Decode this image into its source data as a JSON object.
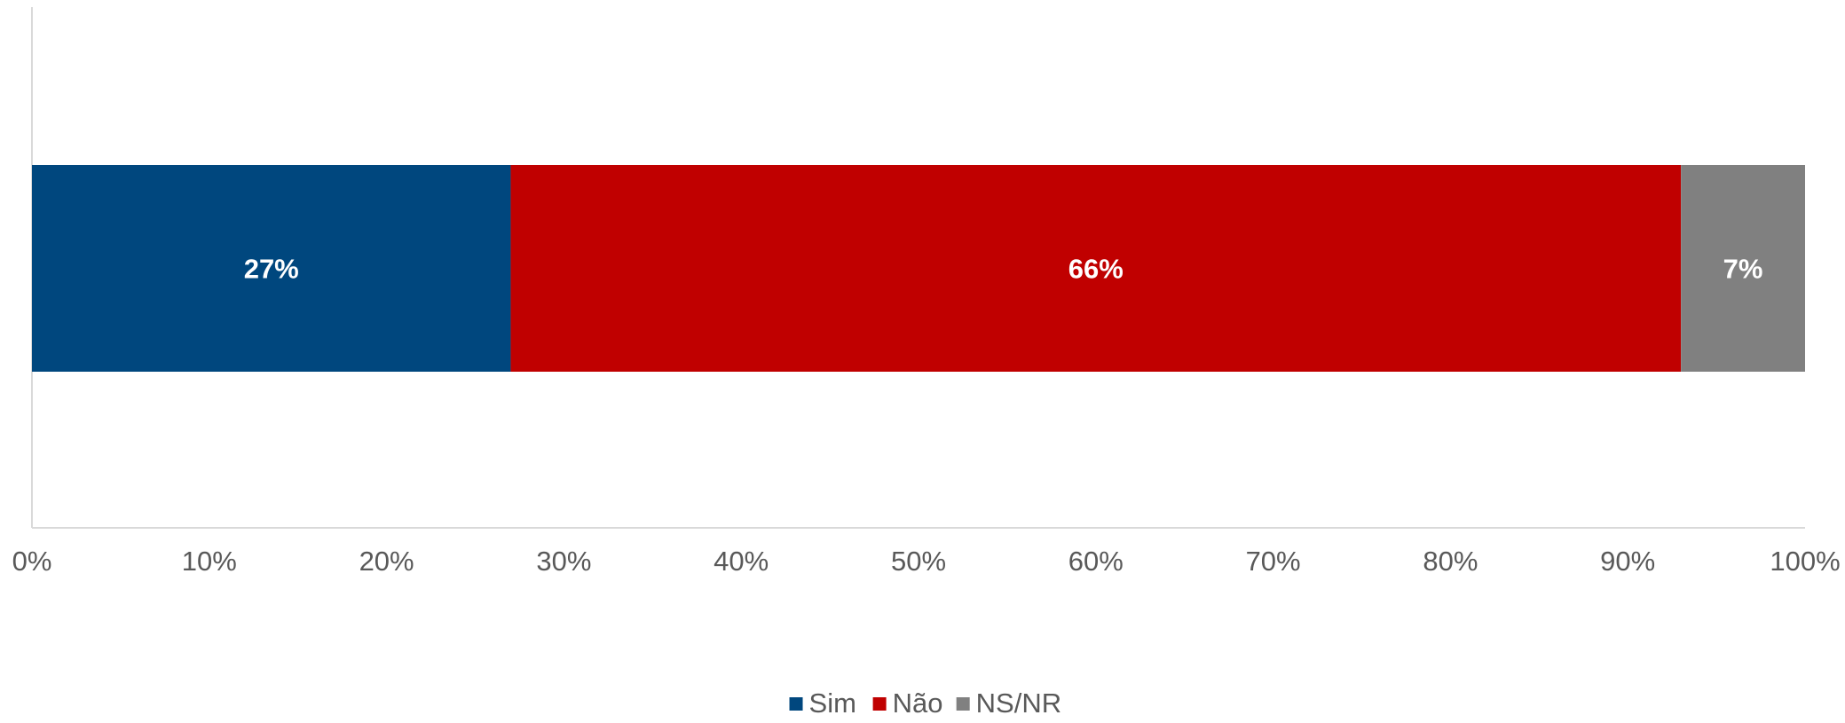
{
  "chart_data": {
    "type": "bar",
    "orientation": "horizontal",
    "stacked": "percent",
    "categories": [
      ""
    ],
    "series": [
      {
        "name": "Sim",
        "values": [
          27
        ],
        "label": "27%",
        "color": "#00477e"
      },
      {
        "name": "Não",
        "values": [
          66
        ],
        "label": "66%",
        "color": "#c00000"
      },
      {
        "name": "NS/NR",
        "values": [
          7
        ],
        "label": "7%",
        "color": "#808080"
      }
    ],
    "xlim": [
      0,
      100
    ],
    "x_ticks": [
      0,
      10,
      20,
      30,
      40,
      50,
      60,
      70,
      80,
      90,
      100
    ],
    "x_tick_labels": [
      "0%",
      "10%",
      "20%",
      "30%",
      "40%",
      "50%",
      "60%",
      "70%",
      "80%",
      "90%",
      "100%"
    ],
    "title": "",
    "xlabel": "",
    "ylabel": "",
    "grid": false,
    "legend": {
      "position": "bottom",
      "entries": [
        "Sim",
        "Não",
        "NS/NR"
      ]
    }
  }
}
